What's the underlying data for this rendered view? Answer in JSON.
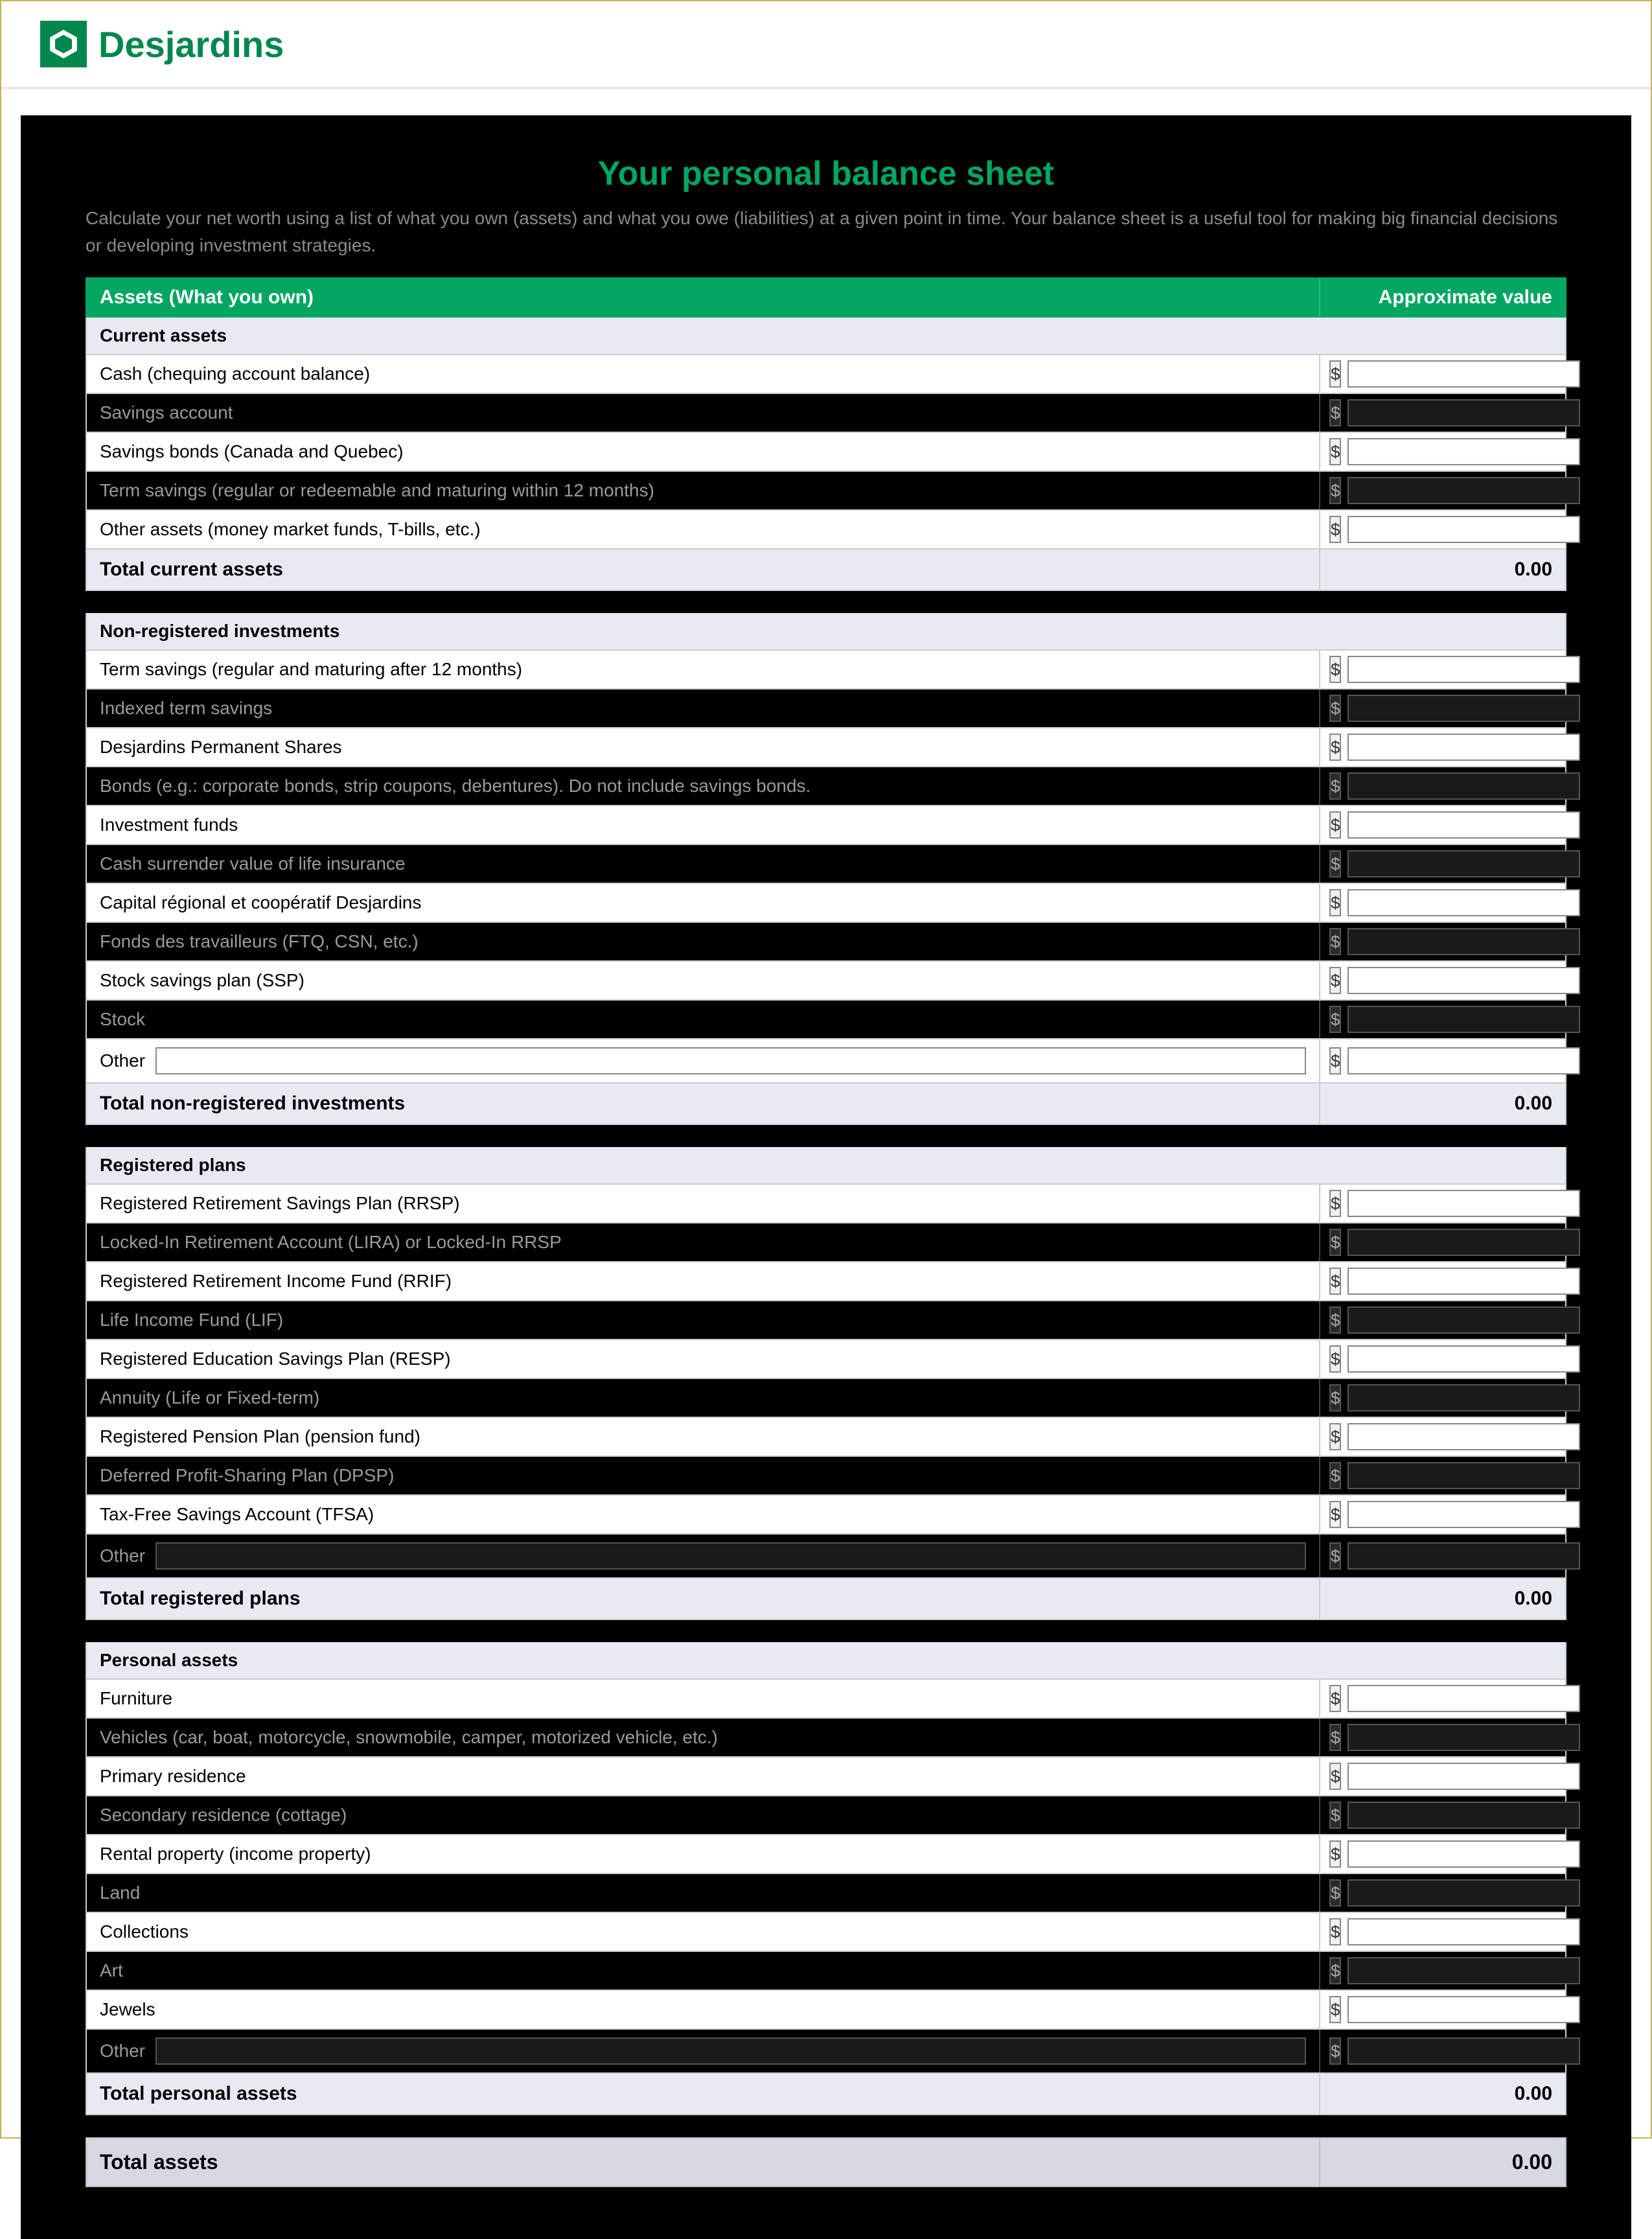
{
  "brand": "Desjardins",
  "colors": {
    "brand_green": "#00874e",
    "accent_green": "#00a661",
    "panel_bg": "#000000",
    "subhead_bg": "#e8eaf3",
    "grand_bg": "#d6d8e4",
    "muted_text": "#8a8a8a"
  },
  "title": "Your personal balance sheet",
  "intro": "Calculate your net worth using a list of what you own (assets) and what you owe (liabilities) at a given point in time. Your balance sheet is a useful tool for making big financial decisions or developing investment strategies.",
  "header": {
    "left": "Assets (What you own)",
    "right": "Approximate value"
  },
  "currency": "$",
  "sections": [
    {
      "name": "Current assets",
      "rows": [
        {
          "label": "Cash (chequing account balance)"
        },
        {
          "label": "Savings account"
        },
        {
          "label": "Savings bonds (Canada and Quebec)"
        },
        {
          "label": "Term savings (regular or redeemable and maturing within 12 months)"
        },
        {
          "label": "Other assets (money market funds, T-bills, etc.)"
        }
      ],
      "total_label": "Total current assets",
      "total_value": "0.00"
    },
    {
      "name": "Non-registered investments",
      "rows": [
        {
          "label": "Term savings (regular and maturing after 12 months)"
        },
        {
          "label": "Indexed term savings"
        },
        {
          "label": "Desjardins Permanent Shares"
        },
        {
          "label": "Bonds (e.g.: corporate bonds, strip coupons, debentures). Do not include savings bonds."
        },
        {
          "label": "Investment funds"
        },
        {
          "label": "Cash surrender value of life insurance"
        },
        {
          "label": "Capital régional et coopératif Desjardins"
        },
        {
          "label": "Fonds des travailleurs (FTQ, CSN, etc.)"
        },
        {
          "label": "Stock savings plan (SSP)"
        },
        {
          "label": "Stock"
        },
        {
          "label": "Other",
          "freeform": true
        }
      ],
      "total_label": "Total non-registered investments",
      "total_value": "0.00"
    },
    {
      "name": "Registered plans",
      "rows": [
        {
          "label": "Registered Retirement Savings Plan (RRSP)"
        },
        {
          "label": "Locked-In Retirement Account (LIRA) or Locked-In RRSP"
        },
        {
          "label": "Registered Retirement Income Fund (RRIF)"
        },
        {
          "label": "Life Income Fund (LIF)"
        },
        {
          "label": "Registered Education Savings Plan (RESP)"
        },
        {
          "label": "Annuity (Life or Fixed-term)"
        },
        {
          "label": "Registered Pension Plan (pension fund)"
        },
        {
          "label": "Deferred Profit-Sharing Plan (DPSP)"
        },
        {
          "label": "Tax-Free Savings Account (TFSA)"
        },
        {
          "label": "Other",
          "freeform": true
        }
      ],
      "total_label": "Total registered plans",
      "total_value": "0.00"
    },
    {
      "name": "Personal assets",
      "rows": [
        {
          "label": "Furniture"
        },
        {
          "label": "Vehicles (car, boat, motorcycle, snowmobile, camper, motorized vehicle, etc.)"
        },
        {
          "label": "Primary residence"
        },
        {
          "label": "Secondary residence (cottage)"
        },
        {
          "label": "Rental property (income property)"
        },
        {
          "label": "Land"
        },
        {
          "label": "Collections"
        },
        {
          "label": "Art"
        },
        {
          "label": "Jewels"
        },
        {
          "label": "Other",
          "freeform": true
        }
      ],
      "total_label": "Total personal assets",
      "total_value": "0.00"
    }
  ],
  "grand_total_label": "Total assets",
  "grand_total_value": "0.00"
}
